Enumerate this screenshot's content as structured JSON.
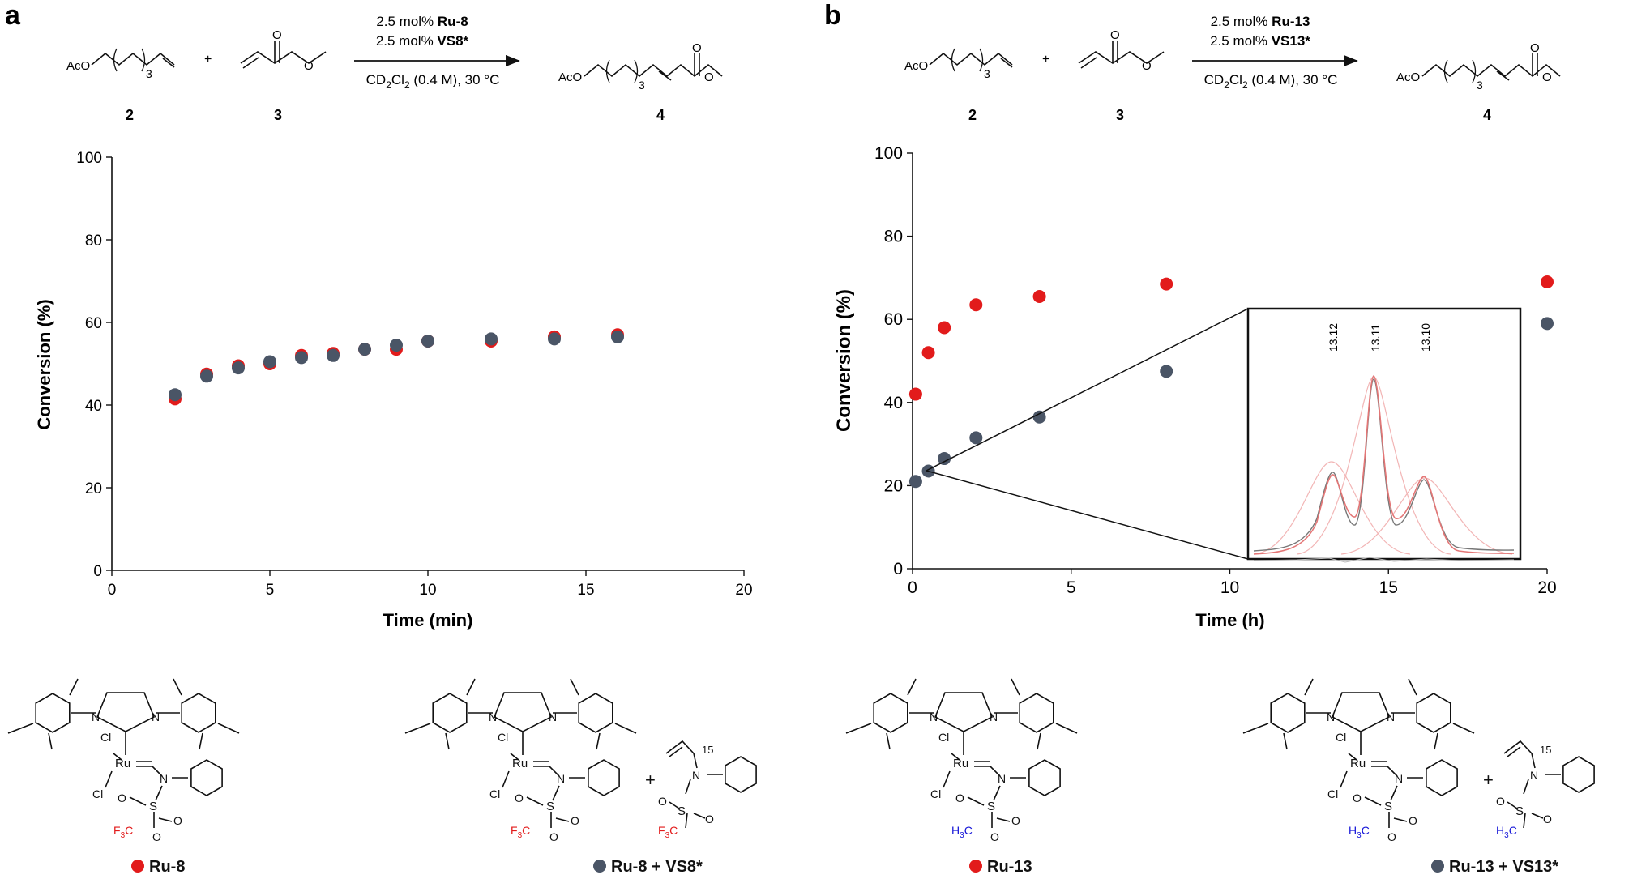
{
  "colors": {
    "red": "#e21b1b",
    "gray": "#4a5566",
    "blue": "#1515d8",
    "pinkline": "#e89a9a"
  },
  "panels": {
    "a": {
      "letter": "a",
      "reaction": {
        "reactant1_label": "AcO",
        "reactant1_sub": "3",
        "plus": "+",
        "cond_line1_prefix": "2.5 mol% ",
        "cond_line1_bold": "Ru-8",
        "cond_line2_prefix": "2.5 mol% ",
        "cond_line2_bold": "VS8*",
        "cond_line3_a": "CD",
        "cond_line3_sub1": "2",
        "cond_line3_b": "Cl",
        "cond_line3_sub2": "2",
        "cond_line3_c": " (0.4 M), 30 °C",
        "product_label": "AcO",
        "product_sub": "3",
        "num_reactant1": "2",
        "num_reactant2": "3",
        "num_product": "4"
      }
    },
    "b": {
      "letter": "b",
      "reaction": {
        "reactant1_label": "AcO",
        "reactant1_sub": "3",
        "plus": "+",
        "cond_line1_prefix": "2.5 mol% ",
        "cond_line1_bold": "Ru-13",
        "cond_line2_prefix": "2.5 mol% ",
        "cond_line2_bold": "VS13*",
        "cond_line3_a": "CD",
        "cond_line3_sub1": "2",
        "cond_line3_b": "Cl",
        "cond_line3_sub2": "2",
        "cond_line3_c": " (0.4 M), 30 °C",
        "product_label": "AcO",
        "product_sub": "3",
        "num_reactant1": "2",
        "num_reactant2": "3",
        "num_product": "4"
      },
      "inset": {
        "peak_labels": [
          "13.12",
          "13.11",
          "13.10"
        ]
      }
    }
  },
  "chart_data": [
    {
      "type": "scatter",
      "title": "",
      "xlabel": "Time (min)",
      "ylabel": "Conversion (%)",
      "xlim": [
        0,
        20
      ],
      "ylim": [
        0,
        100
      ],
      "xticks": [
        0,
        5,
        10,
        15,
        20
      ],
      "yticks": [
        0,
        20,
        40,
        60,
        80,
        100
      ],
      "series": [
        {
          "name": "Ru-8",
          "color": "red",
          "x": [
            2,
            3,
            4,
            5,
            6,
            7,
            8,
            9,
            10,
            12,
            14,
            16
          ],
          "y": [
            41.5,
            47.5,
            49.5,
            50,
            52,
            52.5,
            53.5,
            53.5,
            55.5,
            55.5,
            56.5,
            57
          ]
        },
        {
          "name": "Ru-8 + VS8*",
          "color": "gray",
          "x": [
            2,
            3,
            4,
            5,
            6,
            7,
            8,
            9,
            10,
            12,
            14,
            16
          ],
          "y": [
            42.5,
            47,
            49,
            50.5,
            51.5,
            52,
            53.5,
            54.5,
            55.5,
            56,
            56,
            56.5
          ]
        }
      ]
    },
    {
      "type": "scatter",
      "title": "",
      "xlabel": "Time (h)",
      "ylabel": "Conversion (%)",
      "xlim": [
        0,
        20
      ],
      "ylim": [
        0,
        100
      ],
      "xticks": [
        0,
        5,
        10,
        15,
        20
      ],
      "yticks": [
        0,
        20,
        40,
        60,
        80,
        100
      ],
      "series": [
        {
          "name": "Ru-13",
          "color": "red",
          "x": [
            0.1,
            0.5,
            1,
            2,
            4,
            8,
            20
          ],
          "y": [
            42,
            52,
            58,
            63.5,
            65.5,
            68.5,
            69
          ]
        },
        {
          "name": "Ru-13 + VS13*",
          "color": "gray",
          "x": [
            0.1,
            0.5,
            1,
            2,
            4,
            8,
            20
          ],
          "y": [
            21,
            23.5,
            26.5,
            31.5,
            36.5,
            47.5,
            59
          ]
        }
      ]
    }
  ],
  "structures": [
    {
      "id": "ru8",
      "caption": "Ru-8",
      "marker": "red",
      "group": "F3C",
      "group_color": "red",
      "has_vs": false
    },
    {
      "id": "ru8vs",
      "caption": "Ru-8 + VS8*",
      "marker": "gray",
      "group": "F3C",
      "group_color": "red",
      "has_vs": true
    },
    {
      "id": "ru13",
      "caption": "Ru-13",
      "marker": "red",
      "group": "H3C",
      "group_color": "blue",
      "has_vs": false
    },
    {
      "id": "ru13vs",
      "caption": "Ru-13 + VS13*",
      "marker": "gray",
      "group": "H3C",
      "group_color": "blue",
      "has_vs": true
    }
  ],
  "structure_text": {
    "N": "N",
    "Cl": "Cl",
    "Ru": "Ru",
    "O": "O",
    "S": "S",
    "plus": "+",
    "vs_label": "15",
    "F3C_a": "F",
    "F3C_sub": "3",
    "F3C_b": "C",
    "H3C_a": "H",
    "H3C_sub": "3",
    "H3C_b": "C"
  }
}
